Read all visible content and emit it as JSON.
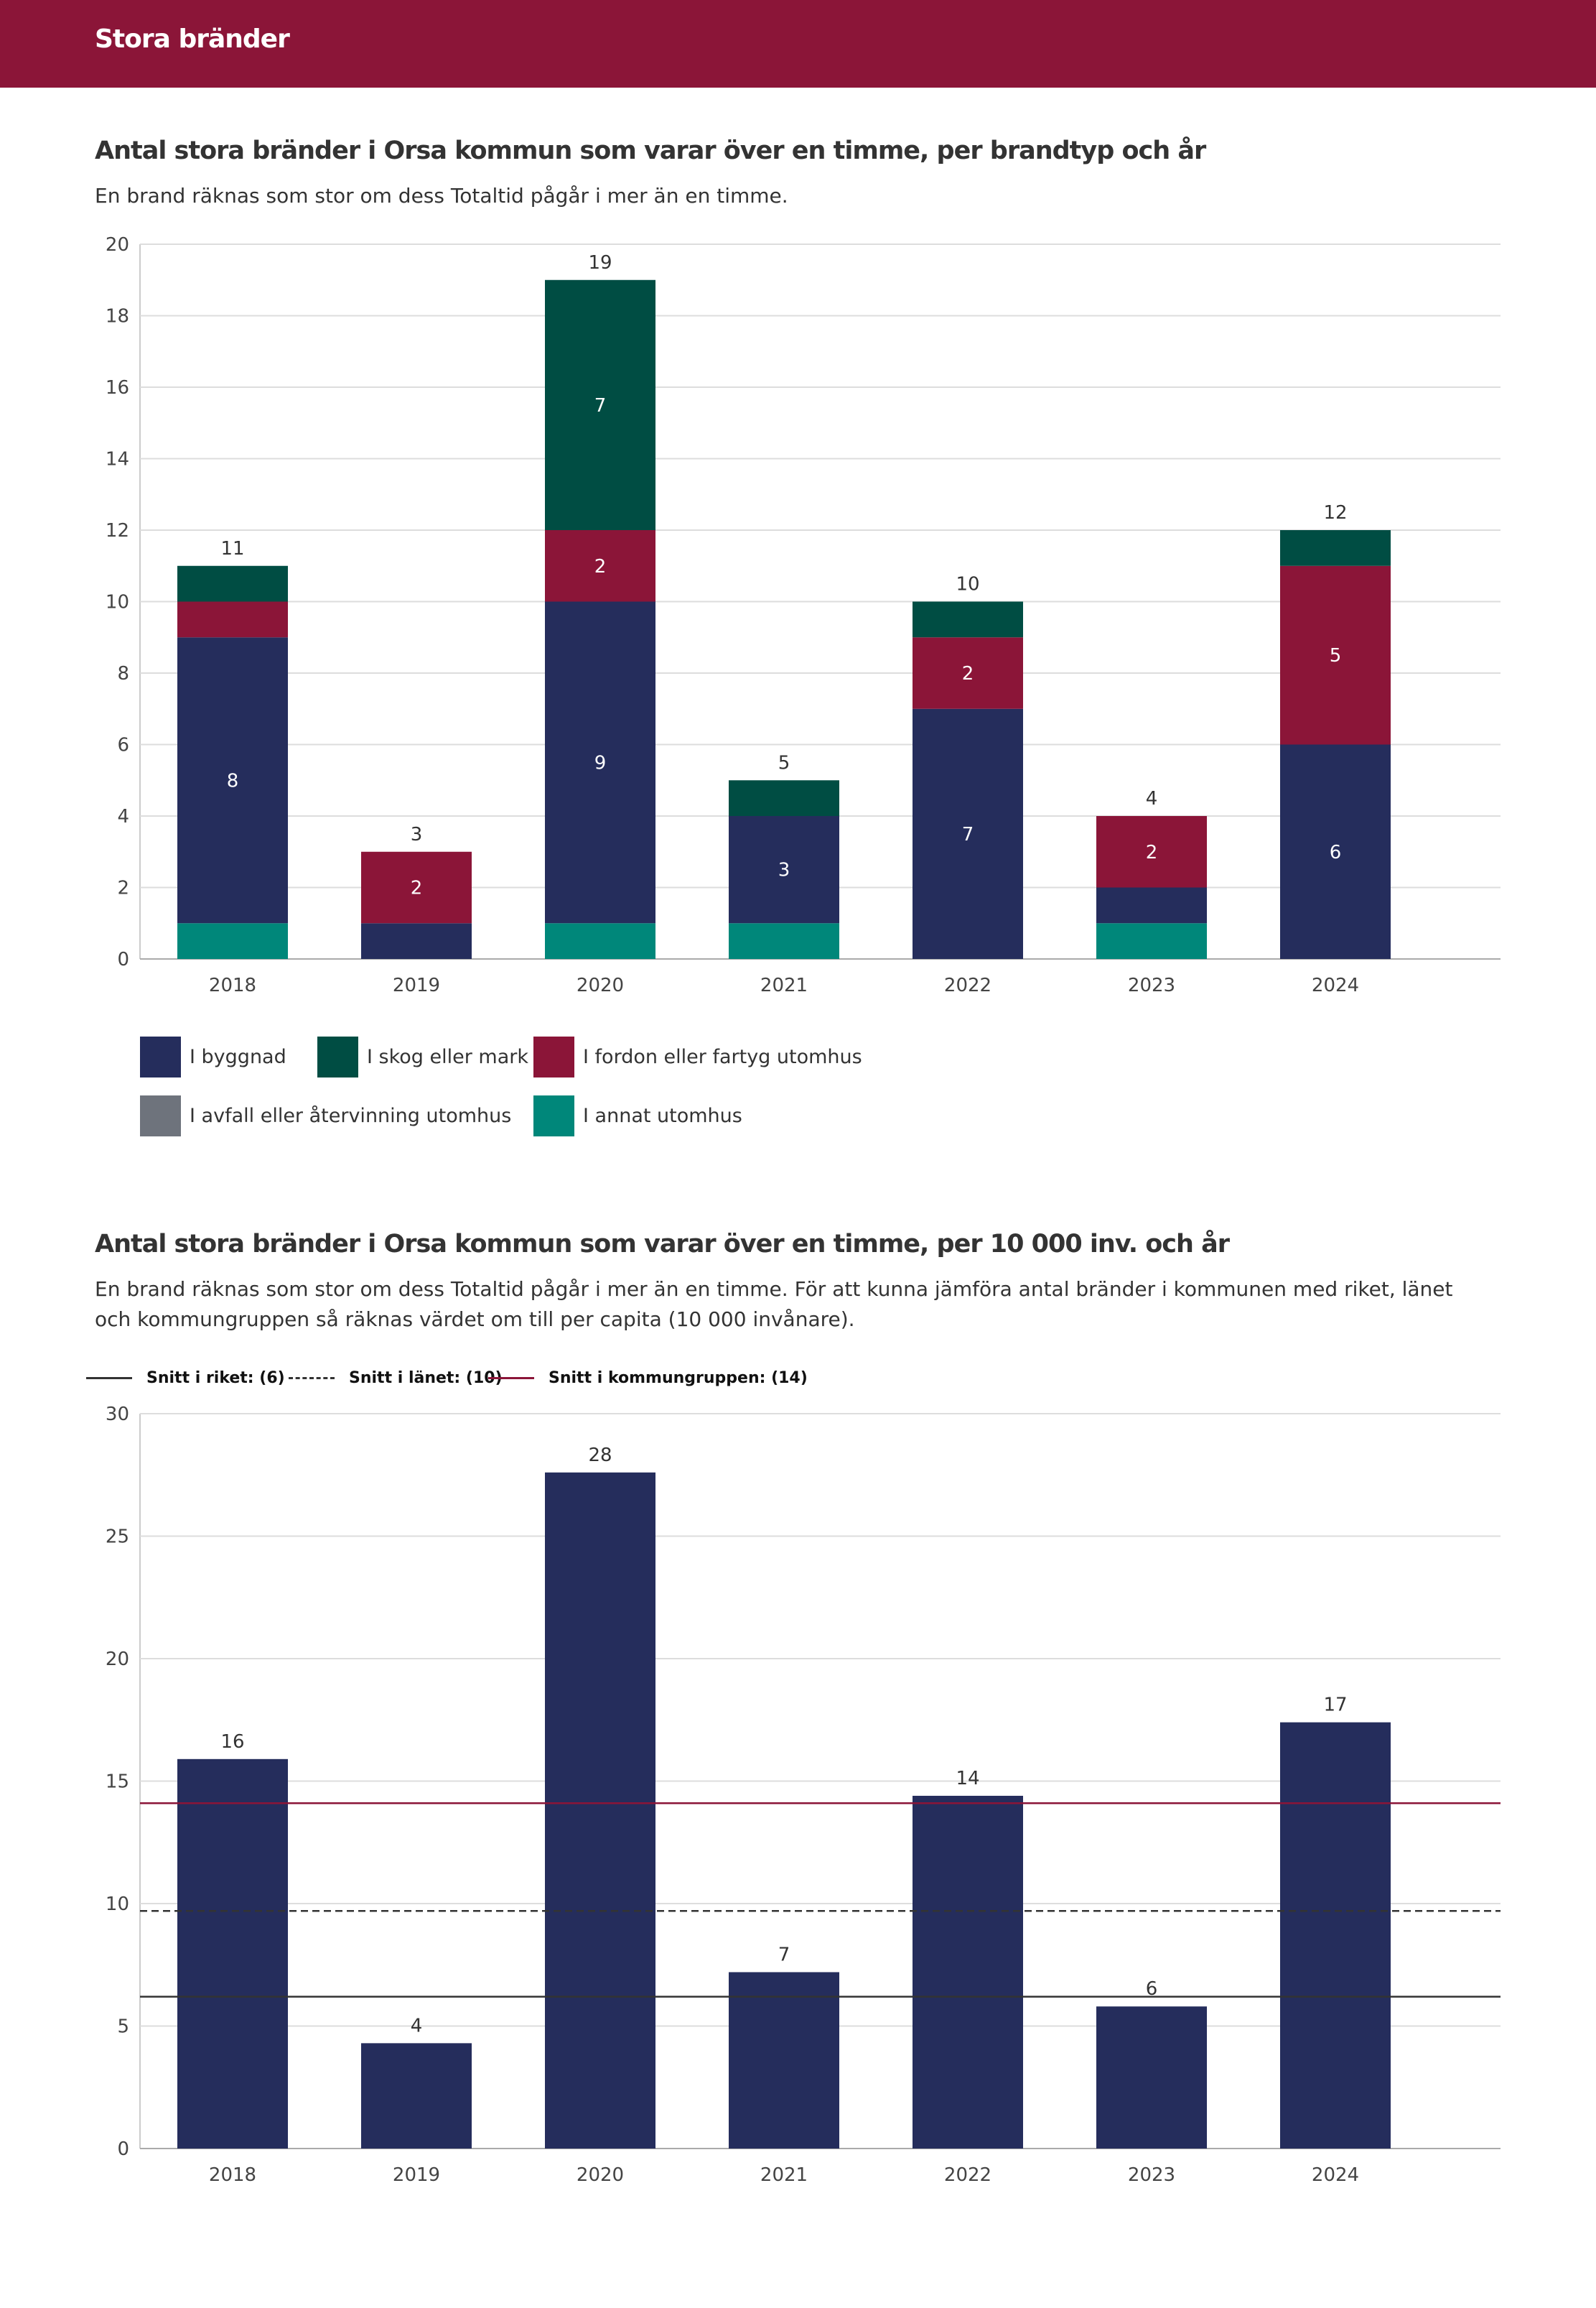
{
  "header": {
    "title": "Stora bränder"
  },
  "chart_data": [
    {
      "type": "bar",
      "stacked": true,
      "title": "Antal stora bränder i Orsa kommun som varar över en timme, per brandtyp och år",
      "subtitle": "En brand räknas som stor om dess Totaltid pågår i mer än en timme.",
      "categories": [
        "2018",
        "2019",
        "2020",
        "2021",
        "2022",
        "2023",
        "2024"
      ],
      "ylim": [
        0,
        20
      ],
      "yticks": [
        "0",
        "2",
        "4",
        "6",
        "8",
        "10",
        "12",
        "14",
        "16",
        "18",
        "20"
      ],
      "grid": true,
      "legend_position": "bottom",
      "series": [
        {
          "name": "I annat utomhus",
          "color": "#00877a",
          "values": [
            1,
            0,
            1,
            1,
            0,
            1,
            0
          ]
        },
        {
          "name": "I byggnad",
          "color": "#252d5c",
          "values": [
            8,
            1,
            9,
            3,
            7,
            1,
            6
          ]
        },
        {
          "name": "I fordon eller fartyg utomhus",
          "color": "#8b1538",
          "values": [
            1,
            2,
            2,
            0,
            2,
            2,
            5
          ]
        },
        {
          "name": "I skog eller mark",
          "color": "#004d43",
          "values": [
            1,
            0,
            7,
            1,
            1,
            0,
            1
          ]
        },
        {
          "name": "I avfall eller återvinning utomhus",
          "color": "#6e737c",
          "values": [
            0,
            0,
            0,
            0,
            0,
            0,
            0
          ]
        }
      ],
      "totals": [
        "11",
        "3",
        "19",
        "5",
        "10",
        "4",
        "12"
      ],
      "legend_order": [
        "I byggnad",
        "I skog eller mark",
        "I fordon eller fartyg utomhus",
        "I avfall eller återvinning utomhus",
        "I annat utomhus"
      ]
    },
    {
      "type": "bar",
      "title": "Antal stora bränder i Orsa kommun som varar över en timme, per 10 000 inv. och år",
      "subtitle": "En brand räknas som stor om dess Totaltid pågår i mer än en timme. För att kunna jämföra antal bränder i kommunen med riket, länet och kommungruppen så räknas värdet om till per capita (10 000 invånare).",
      "categories": [
        "2018",
        "2019",
        "2020",
        "2021",
        "2022",
        "2023",
        "2024"
      ],
      "values": [
        15.9,
        4.3,
        27.6,
        7.2,
        14.4,
        5.8,
        17.4
      ],
      "labels": [
        "16",
        "4",
        "28",
        "7",
        "14",
        "6",
        "17"
      ],
      "color": "#252d5c",
      "ylim": [
        0,
        30
      ],
      "yticks": [
        "0",
        "5",
        "10",
        "15",
        "20",
        "25",
        "30"
      ],
      "grid": true,
      "reference_lines": [
        {
          "name": "Snitt i riket: (6)",
          "value": 6.2,
          "style": "solid",
          "color": "#333333"
        },
        {
          "name": "Snitt i länet: (10)",
          "value": 9.7,
          "style": "dashed",
          "color": "#333333"
        },
        {
          "name": "Snitt i kommungruppen: (14)",
          "value": 14.1,
          "style": "solid",
          "color": "#8b1538"
        }
      ]
    }
  ]
}
